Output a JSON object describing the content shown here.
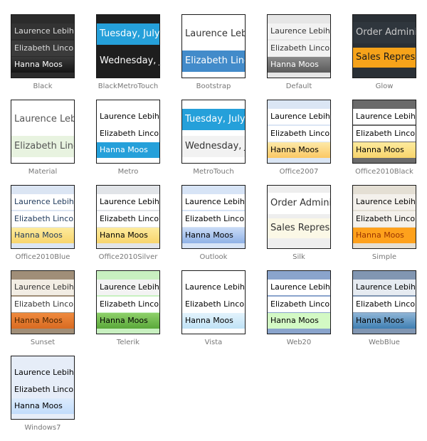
{
  "items": [
    {
      "caption": "Black",
      "variant": "normal",
      "frame": "#2b2b2b",
      "rows": [
        {
          "text": "Laurence Lebihan",
          "bg": "#333333",
          "fg": "#dddddd"
        },
        {
          "text": "Elizabeth Lincoln",
          "bg": "#3b3b3b",
          "fg": "#dddddd"
        },
        {
          "text": "Hanna Moos",
          "bg": "linear-gradient(#3a3a3a,#151515)",
          "fg": "#ffffff"
        }
      ]
    },
    {
      "caption": "BlackMetroTouch",
      "variant": "big2",
      "frame": "#1e1e1e",
      "rows": [
        {
          "text": "Tuesday, July",
          "bg": "#25a0da",
          "fg": "#ffffff"
        },
        {
          "text": "Wednesday, J",
          "bg": "#1e1e1e",
          "fg": "#ffffff"
        }
      ]
    },
    {
      "caption": "Bootstrap",
      "variant": "big2",
      "frame": "#ffffff",
      "rows": [
        {
          "text": "Laurence Leb",
          "bg": "#ffffff",
          "fg": "#333333"
        },
        {
          "text": "Elizabeth Linco",
          "bg": "#428bca",
          "fg": "#ffffff"
        }
      ]
    },
    {
      "caption": "Default",
      "variant": "normal",
      "frame": "#e6e6e6",
      "rows": [
        {
          "text": "Laurence Lebihan",
          "bg": "#f2f2f2",
          "fg": "#333333"
        },
        {
          "text": "Elizabeth Lincoln",
          "bg": "#f2f2f2",
          "fg": "#333333"
        },
        {
          "text": "Hanna Moos",
          "bg": "linear-gradient(#8a8a8a,#5a5a5a)",
          "fg": "#ffffff"
        }
      ]
    },
    {
      "caption": "Glow",
      "variant": "glow",
      "frame": "#2a3036",
      "rows": [
        {
          "text": "Order Administ",
          "bg": "#2f363d",
          "fg": "#c8c8c8"
        },
        {
          "text": "Sales Represen",
          "bg": "#f6a31a",
          "fg": "#1a1a1a"
        }
      ]
    },
    {
      "caption": "Material",
      "variant": "big2",
      "frame": "#ffffff",
      "rows": [
        {
          "text": "Laurence Lebil",
          "bg": "#ffffff",
          "fg": "#555555"
        },
        {
          "text": "Elizabeth Linco",
          "bg": "#e8f3e0",
          "fg": "#555555"
        }
      ]
    },
    {
      "caption": "Metro",
      "variant": "normal",
      "frame": "#ffffff",
      "rows": [
        {
          "text": "Laurence Lebihan",
          "bg": "#ffffff",
          "fg": "#000000"
        },
        {
          "text": "Elizabeth Lincoln",
          "bg": "#ffffff",
          "fg": "#000000"
        },
        {
          "text": "Hanna Moos",
          "bg": "#25a0da",
          "fg": "#ffffff"
        }
      ]
    },
    {
      "caption": "MetroTouch",
      "variant": "big2",
      "frame": "#ffffff",
      "rows": [
        {
          "text": "Tuesday, July",
          "bg": "#25a0da",
          "fg": "#ffffff"
        },
        {
          "text": "Wednesday, J",
          "bg": "#f2f2f2",
          "fg": "#333333"
        }
      ]
    },
    {
      "caption": "Office2007",
      "variant": "normal",
      "frame": "#dbe6f4",
      "rows": [
        {
          "text": "Laurence Lebihan",
          "bg": "#ffffff",
          "fg": "#000000"
        },
        {
          "text": "Elizabeth Lincoln",
          "bg": "#ffffff",
          "fg": "#000000"
        },
        {
          "text": "Hanna Moos",
          "bg": "linear-gradient(#fde9a8,#fbc864)",
          "fg": "#000000"
        }
      ]
    },
    {
      "caption": "Office2010Black",
      "variant": "normal",
      "frame": "#6b6b6b",
      "rows": [
        {
          "text": "Laurence Lebihan",
          "bg": "#ffffff",
          "fg": "#000000"
        },
        {
          "text": "Elizabeth Lincoln",
          "bg": "#ffffff",
          "fg": "#000000"
        },
        {
          "text": "Hanna Moos",
          "bg": "linear-gradient(#fdeb9d,#f8d56c)",
          "fg": "#000000"
        }
      ]
    },
    {
      "caption": "Office2010Blue",
      "variant": "normal",
      "frame": "#dbe5f3",
      "rows": [
        {
          "text": "Laurence Lebihan",
          "bg": "#ffffff",
          "fg": "#1e395b"
        },
        {
          "text": "Elizabeth Lincoln",
          "bg": "#ffffff",
          "fg": "#1e395b"
        },
        {
          "text": "Hanna Moos",
          "bg": "linear-gradient(#fdeb9d,#f8d56c)",
          "fg": "#1e395b"
        }
      ]
    },
    {
      "caption": "Office2010Silver",
      "variant": "normal",
      "frame": "#e1e4e8",
      "rows": [
        {
          "text": "Laurence Lebihan",
          "bg": "#ffffff",
          "fg": "#000000"
        },
        {
          "text": "Elizabeth Lincoln",
          "bg": "#ffffff",
          "fg": "#000000"
        },
        {
          "text": "Hanna Moos",
          "bg": "linear-gradient(#fdeb9d,#f8d56c)",
          "fg": "#000000"
        }
      ]
    },
    {
      "caption": "Outlook",
      "variant": "normal",
      "frame": "#d7e4f6",
      "rows": [
        {
          "text": "Laurence Lebihan",
          "bg": "#ffffff",
          "fg": "#000000"
        },
        {
          "text": "Elizabeth Lincoln",
          "bg": "#ffffff",
          "fg": "#000000"
        },
        {
          "text": "Hanna Moos",
          "bg": "linear-gradient(#c9dbf6,#8fb1e6)",
          "fg": "#000000"
        }
      ]
    },
    {
      "caption": "Silk",
      "variant": "glow",
      "frame": "#eeeeee",
      "rows": [
        {
          "text": "Order Administ",
          "bg": "#ffffff",
          "fg": "#333333"
        },
        {
          "text": "Sales Represen",
          "bg": "#fbf8e6",
          "fg": "#333333"
        }
      ]
    },
    {
      "caption": "Simple",
      "variant": "normal",
      "frame": "#e4dfd4",
      "rows": [
        {
          "text": "Laurence Lebihan",
          "bg": "#f4f1ec",
          "fg": "#000000"
        },
        {
          "text": "Elizabeth Lincoln",
          "bg": "#f4f1ec",
          "fg": "#000000"
        },
        {
          "text": "Hanna Moos",
          "bg": "#fea11c",
          "fg": "#993300"
        }
      ]
    },
    {
      "caption": "Sunset",
      "variant": "normal",
      "frame": "#a08e78",
      "rows": [
        {
          "text": "Laurence Lebihan",
          "bg": "#f2ede4",
          "fg": "#333333"
        },
        {
          "text": "Elizabeth Lincoln",
          "bg": "#ffffff",
          "fg": "#333333"
        },
        {
          "text": "Hanna Moos",
          "bg": "linear-gradient(#ef8a3e,#d96b22)",
          "fg": "#4a2400"
        }
      ]
    },
    {
      "caption": "Telerik",
      "variant": "normal",
      "frame": "#c8f0c0",
      "rows": [
        {
          "text": "Laurence Lebihan",
          "bg": "#f3f3f3",
          "fg": "#000000"
        },
        {
          "text": "Elizabeth Lincoln",
          "bg": "#ffffff",
          "fg": "#000000"
        },
        {
          "text": "Hanna Moos",
          "bg": "linear-gradient(#8ed06a,#5aa83a)",
          "fg": "#000000"
        }
      ]
    },
    {
      "caption": "Vista",
      "variant": "normal",
      "frame": "#ffffff",
      "rows": [
        {
          "text": "Laurence Lebihan",
          "bg": "#ffffff",
          "fg": "#000000"
        },
        {
          "text": "Elizabeth Lincoln",
          "bg": "#ffffff",
          "fg": "#000000"
        },
        {
          "text": "Hanna Moos",
          "bg": "linear-gradient(#e3f3fc,#bfe2f6)",
          "fg": "#000000"
        }
      ]
    },
    {
      "caption": "Web20",
      "variant": "normal",
      "frame": "#8aa4cc",
      "rows": [
        {
          "text": "Laurence Lebihan",
          "bg": "#ffffff",
          "fg": "#000000"
        },
        {
          "text": "Elizabeth Lincoln",
          "bg": "#ffffff",
          "fg": "#000000"
        },
        {
          "text": "Hanna Moos",
          "bg": "#d3f9c4",
          "fg": "#000000"
        }
      ]
    },
    {
      "caption": "WebBlue",
      "variant": "normal",
      "frame": "#8196b2",
      "rows": [
        {
          "text": "Laurence Lebihan",
          "bg": "#e6ebf1",
          "fg": "#000000"
        },
        {
          "text": "Elizabeth Lincoln",
          "bg": "#ffffff",
          "fg": "#000000"
        },
        {
          "text": "Hanna Moos",
          "bg": "linear-gradient(#8fb5d6,#3f7fb3)",
          "fg": "#000000"
        }
      ]
    },
    {
      "caption": "Windows7",
      "variant": "normal",
      "frame": "#e6edf8",
      "rows": [
        {
          "text": "Laurence Lebihan",
          "bg": "#e6edf8",
          "fg": "#000000"
        },
        {
          "text": "Elizabeth Lincoln",
          "bg": "#e6edf8",
          "fg": "#000000"
        },
        {
          "text": "Hanna Moos",
          "bg": "linear-gradient(#dcebfc,#c1dcfb)",
          "fg": "#000000"
        }
      ]
    }
  ]
}
